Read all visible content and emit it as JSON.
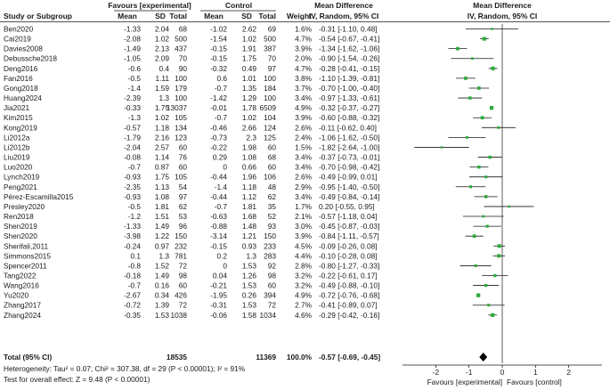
{
  "chart_data": {
    "type": "forest",
    "header": {
      "group_exp": "Favours [experimental]",
      "group_ctrl": "Control",
      "md_text": "Mean Difference",
      "md_text2": "Mean Difference",
      "columns": {
        "study": "Study or Subgroup",
        "mean1": "Mean",
        "sd1": "SD",
        "total1": "Total",
        "mean2": "Mean",
        "sd2": "SD",
        "total2": "Total",
        "weight": "Weight",
        "md": "IV, Random, 95% CI",
        "md_plot": "IV, Random, 95% CI"
      }
    },
    "studies": [
      {
        "name": "Ben2020",
        "mean1": "-1.33",
        "sd1": "2.04",
        "n1": "68",
        "mean2": "-1.02",
        "sd2": "2.62",
        "n2": "69",
        "weight": "1.6%",
        "ci_text": "-0.31 [-1.10, 0.48]",
        "md": -0.31,
        "lo": -1.1,
        "hi": 0.48
      },
      {
        "name": "Cai2019",
        "mean1": "-2.08",
        "sd1": "1.02",
        "n1": "500",
        "mean2": "-1.54",
        "sd2": "1.02",
        "n2": "500",
        "weight": "4.7%",
        "ci_text": "-0.54 [-0.67, -0.41]",
        "md": -0.54,
        "lo": -0.67,
        "hi": -0.41
      },
      {
        "name": "Davies2008",
        "mean1": "-1.49",
        "sd1": "2.13",
        "n1": "437",
        "mean2": "-0.15",
        "sd2": "1.91",
        "n2": "387",
        "weight": "3.9%",
        "ci_text": "-1.34 [-1.62, -1.06]",
        "md": -1.34,
        "lo": -1.62,
        "hi": -1.06
      },
      {
        "name": "Debussche2018",
        "mean1": "-1.05",
        "sd1": "2.09",
        "n1": "70",
        "mean2": "-0.15",
        "sd2": "1.75",
        "n2": "70",
        "weight": "2.0%",
        "ci_text": "-0.90 [-1.54, -0.26]",
        "md": -0.9,
        "lo": -1.54,
        "hi": -0.26
      },
      {
        "name": "Deng2016",
        "mean1": "-0.6",
        "sd1": "0.4",
        "n1": "90",
        "mean2": "-0.32",
        "sd2": "0.49",
        "n2": "97",
        "weight": "4.7%",
        "ci_text": "-0.28 [-0.41, -0.15]",
        "md": -0.28,
        "lo": -0.41,
        "hi": -0.15
      },
      {
        "name": "Fan2016",
        "mean1": "-0.5",
        "sd1": "1.11",
        "n1": "100",
        "mean2": "0.6",
        "sd2": "1.01",
        "n2": "100",
        "weight": "3.8%",
        "ci_text": "-1.10 [-1.39, -0.81]",
        "md": -1.1,
        "lo": -1.39,
        "hi": -0.81
      },
      {
        "name": "Gong2018",
        "mean1": "-1.4",
        "sd1": "1.59",
        "n1": "179",
        "mean2": "-0.7",
        "sd2": "1.35",
        "n2": "184",
        "weight": "3.7%",
        "ci_text": "-0.70 [-1.00, -0.40]",
        "md": -0.7,
        "lo": -1.0,
        "hi": -0.4
      },
      {
        "name": "Huang2024",
        "mean1": "-2.39",
        "sd1": "1.3",
        "n1": "100",
        "mean2": "-1.42",
        "sd2": "1.29",
        "n2": "100",
        "weight": "3.4%",
        "ci_text": "-0.97 [-1.33, -0.61]",
        "md": -0.97,
        "lo": -1.33,
        "hi": -0.61
      },
      {
        "name": "Jia2021",
        "mean1": "-0.33",
        "sd1": "1.75",
        "n1": "13037",
        "mean2": "-0.01",
        "sd2": "1.78",
        "n2": "6509",
        "weight": "4.9%",
        "ci_text": "-0.32 [-0.37, -0.27]",
        "md": -0.32,
        "lo": -0.37,
        "hi": -0.27
      },
      {
        "name": "Kim2015",
        "mean1": "-1.3",
        "sd1": "1.02",
        "n1": "105",
        "mean2": "-0.7",
        "sd2": "1.02",
        "n2": "104",
        "weight": "3.9%",
        "ci_text": "-0.60 [-0.88, -0.32]",
        "md": -0.6,
        "lo": -0.88,
        "hi": -0.32
      },
      {
        "name": "Kong2019",
        "mean1": "-0.57",
        "sd1": "1.18",
        "n1": "134",
        "mean2": "-0.46",
        "sd2": "2.66",
        "n2": "124",
        "weight": "2.6%",
        "ci_text": "-0.11 [-0.62, 0.40]",
        "md": -0.11,
        "lo": -0.62,
        "hi": 0.4
      },
      {
        "name": "Li2012a",
        "mean1": "-1.79",
        "sd1": "2.16",
        "n1": "123",
        "mean2": "-0.73",
        "sd2": "2.3",
        "n2": "125",
        "weight": "2.4%",
        "ci_text": "-1.06 [-1.62, -0.50]",
        "md": -1.06,
        "lo": -1.62,
        "hi": -0.5
      },
      {
        "name": "Li2012b",
        "mean1": "-2.04",
        "sd1": "2.57",
        "n1": "60",
        "mean2": "-0.22",
        "sd2": "1.98",
        "n2": "60",
        "weight": "1.5%",
        "ci_text": "-1.82 [-2.64, -1.00]",
        "md": -1.82,
        "lo": -2.64,
        "hi": -1.0
      },
      {
        "name": "Liu2019",
        "mean1": "-0.08",
        "sd1": "1.14",
        "n1": "76",
        "mean2": "0.29",
        "sd2": "1.08",
        "n2": "68",
        "weight": "3.4%",
        "ci_text": "-0.37 [-0.73, -0.01]",
        "md": -0.37,
        "lo": -0.73,
        "hi": -0.01
      },
      {
        "name": "Luo2020",
        "mean1": "-0.7",
        "sd1": "0.87",
        "n1": "60",
        "mean2": "0",
        "sd2": "0.66",
        "n2": "60",
        "weight": "3.4%",
        "ci_text": "-0.70 [-0.98, -0.42]",
        "md": -0.7,
        "lo": -0.98,
        "hi": -0.42
      },
      {
        "name": "Lynch2019",
        "mean1": "-0.93",
        "sd1": "1.75",
        "n1": "105",
        "mean2": "-0.44",
        "sd2": "1.96",
        "n2": "106",
        "weight": "2.6%",
        "ci_text": "-0.49 [-0.99, 0.01]",
        "md": -0.49,
        "lo": -0.99,
        "hi": 0.01
      },
      {
        "name": "Peng2021",
        "mean1": "-2.35",
        "sd1": "1.13",
        "n1": "54",
        "mean2": "-1.4",
        "sd2": "1.18",
        "n2": "48",
        "weight": "2.9%",
        "ci_text": "-0.95 [-1.40, -0.50]",
        "md": -0.95,
        "lo": -1.4,
        "hi": -0.5
      },
      {
        "name": "Pérez-Escamilla2015",
        "mean1": "-0.93",
        "sd1": "1.08",
        "n1": "97",
        "mean2": "-0.44",
        "sd2": "1.12",
        "n2": "62",
        "weight": "3.4%",
        "ci_text": "-0.49 [-0.84, -0.14]",
        "md": -0.49,
        "lo": -0.84,
        "hi": -0.14
      },
      {
        "name": "Presley2020",
        "mean1": "-0.5",
        "sd1": "1.81",
        "n1": "62",
        "mean2": "-0.7",
        "sd2": "1.81",
        "n2": "35",
        "weight": "1.7%",
        "ci_text": "0.20 [-0.55, 0.95]",
        "md": 0.2,
        "lo": -0.55,
        "hi": 0.95
      },
      {
        "name": "Ren2018",
        "mean1": "-1.2",
        "sd1": "1.51",
        "n1": "53",
        "mean2": "-0.63",
        "sd2": "1.68",
        "n2": "52",
        "weight": "2.1%",
        "ci_text": "-0.57 [-1.18, 0.04]",
        "md": -0.57,
        "lo": -1.18,
        "hi": 0.04
      },
      {
        "name": "Shen2019",
        "mean1": "-1.33",
        "sd1": "1.49",
        "n1": "96",
        "mean2": "-0.88",
        "sd2": "1.48",
        "n2": "93",
        "weight": "3.0%",
        "ci_text": "-0.45 [-0.87, -0.03]",
        "md": -0.45,
        "lo": -0.87,
        "hi": -0.03
      },
      {
        "name": "Shen2020",
        "mean1": "-3.98",
        "sd1": "1.22",
        "n1": "150",
        "mean2": "-3.14",
        "sd2": "1.21",
        "n2": "150",
        "weight": "3.9%",
        "ci_text": "-0.84 [-1.11, -0.57]",
        "md": -0.84,
        "lo": -1.11,
        "hi": -0.57
      },
      {
        "name": "Sherifali,2011",
        "mean1": "-0.24",
        "sd1": "0.97",
        "n1": "232",
        "mean2": "-0.15",
        "sd2": "0.93",
        "n2": "233",
        "weight": "4.5%",
        "ci_text": "-0.09 [-0.26, 0.08]",
        "md": -0.09,
        "lo": -0.26,
        "hi": 0.08
      },
      {
        "name": "Simmons2015",
        "mean1": "0.1",
        "sd1": "1.3",
        "n1": "781",
        "mean2": "0.2",
        "sd2": "1.3",
        "n2": "283",
        "weight": "4.4%",
        "ci_text": "-0.10 [-0.28, 0.08]",
        "md": -0.1,
        "lo": -0.28,
        "hi": 0.08
      },
      {
        "name": "Spencer2011",
        "mean1": "-0.8",
        "sd1": "1.52",
        "n1": "72",
        "mean2": "0",
        "sd2": "1.53",
        "n2": "92",
        "weight": "2.8%",
        "ci_text": "-0.80 [-1.27, -0.33]",
        "md": -0.8,
        "lo": -1.27,
        "hi": -0.33
      },
      {
        "name": "Tang2022",
        "mean1": "-0.18",
        "sd1": "1.49",
        "n1": "98",
        "mean2": "0.04",
        "sd2": "1.26",
        "n2": "98",
        "weight": "3.2%",
        "ci_text": "-0.22 [-0.61, 0.17]",
        "md": -0.22,
        "lo": -0.61,
        "hi": 0.17
      },
      {
        "name": "Wang2016",
        "mean1": "-0.7",
        "sd1": "0.16",
        "n1": "60",
        "mean2": "-0.21",
        "sd2": "1.53",
        "n2": "60",
        "weight": "3.2%",
        "ci_text": "-0.49 [-0.88, -0.10]",
        "md": -0.49,
        "lo": -0.88,
        "hi": -0.1
      },
      {
        "name": "Yu2020",
        "mean1": "-2.67",
        "sd1": "0.34",
        "n1": "426",
        "mean2": "-1.95",
        "sd2": "0.26",
        "n2": "394",
        "weight": "4.9%",
        "ci_text": "-0.72 [-0.76, -0.68]",
        "md": -0.72,
        "lo": -0.76,
        "hi": -0.68
      },
      {
        "name": "Zhang2017",
        "mean1": "-0.72",
        "sd1": "1.39",
        "n1": "72",
        "mean2": "-0.31",
        "sd2": "1.53",
        "n2": "72",
        "weight": "2.7%",
        "ci_text": "-0.41 [-0.89, 0.07]",
        "md": -0.41,
        "lo": -0.89,
        "hi": 0.07
      },
      {
        "name": "Zhang2024",
        "mean1": "-0.35",
        "sd1": "1.53",
        "n1": "1038",
        "mean2": "-0.06",
        "sd2": "1.58",
        "n2": "1034",
        "weight": "4.6%",
        "ci_text": "-0.29 [-0.42, -0.16]",
        "md": -0.29,
        "lo": -0.42,
        "hi": -0.16
      }
    ],
    "total": {
      "label": "Total (95% CI)",
      "n1": "18535",
      "n2": "11369",
      "weight": "100.0%",
      "ci_text": "-0.57 [-0.69, -0.45]",
      "md": -0.57,
      "lo": -0.69,
      "hi": -0.45
    },
    "heterogeneity": "Heterogeneity: Tau² = 0.07; Chi² = 307.38, df = 29 (P < 0.00001); I² = 91%",
    "overall_effect": "Test for overall effect: Z = 9.48 (P < 0.00001)",
    "axis": {
      "xlim": [
        -3,
        3
      ],
      "ticks": [
        -2,
        -1,
        0,
        1,
        2
      ],
      "tick_labels": [
        "-2",
        "-1",
        "0",
        "1",
        "2"
      ],
      "left_label": "Favours [experimental]",
      "right_label": "Favours [control]"
    },
    "colors": {
      "point": "#2eaa3c",
      "line": "#1a1a1a",
      "diamond": "#000000"
    }
  }
}
